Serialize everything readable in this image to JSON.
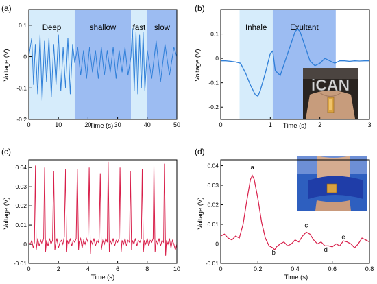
{
  "colors": {
    "blue_trace": "#2f7fd8",
    "red_trace": "#d81f4a",
    "light_band": "#d6ecfb",
    "dark_band": "#9cbcf2",
    "axis": "#000000"
  },
  "icons": {
    "photo_chest": "chest-sensor-photo",
    "photo_wrist": "wrist-sensor-photo"
  },
  "photo_text": {
    "chest_logo": "iCAN"
  },
  "chart_data": [
    {
      "panel": "(a)",
      "type": "line",
      "xlabel": "Time (s)",
      "ylabel": "Voltage (V)",
      "xlim": [
        0,
        50
      ],
      "ylim": [
        -0.2,
        0.15
      ],
      "xticks": [
        "0",
        "10",
        "20",
        "30",
        "40",
        "50"
      ],
      "yticks": [
        "-0.2",
        "-0.1",
        "0",
        "0.1"
      ],
      "regions": [
        {
          "label": "Deep",
          "x0": 0,
          "x1": 15.5,
          "shade": "light"
        },
        {
          "label": "shallow",
          "x0": 15.5,
          "x1": 34.5,
          "shade": "dark"
        },
        {
          "label": "fast",
          "x0": 34.5,
          "x1": 40,
          "shade": "light"
        },
        {
          "label": "slow",
          "x0": 40,
          "x1": 50,
          "shade": "dark"
        }
      ],
      "series": [
        {
          "color": "blue",
          "x": [
            0,
            1,
            1.6,
            2.2,
            3,
            3.8,
            4.5,
            5.3,
            6,
            6.8,
            7.6,
            8.4,
            9.2,
            10,
            10.8,
            11.6,
            12.4,
            13.2,
            14,
            14.8,
            15.5,
            16.5,
            17.5,
            18.5,
            19.5,
            20.5,
            21.5,
            22.5,
            23.5,
            24.5,
            25.5,
            26.5,
            27.5,
            28.5,
            29.5,
            30.5,
            31.5,
            32.5,
            33.5,
            34.5,
            35,
            35.6,
            36.2,
            36.8,
            37.4,
            38,
            38.6,
            39.2,
            40,
            41.5,
            43,
            44.5,
            46,
            47.5,
            49,
            50
          ],
          "y": [
            0.0,
            0.06,
            -0.09,
            0.04,
            -0.12,
            0.07,
            -0.14,
            0.05,
            -0.08,
            0.06,
            -0.13,
            0.04,
            -0.09,
            0.07,
            -0.11,
            0.03,
            -0.1,
            0.06,
            -0.12,
            0.04,
            -0.02,
            0.03,
            -0.06,
            0.02,
            -0.07,
            0.03,
            -0.05,
            0.02,
            -0.07,
            0.03,
            -0.06,
            0.02,
            -0.05,
            0.03,
            -0.07,
            0.02,
            -0.05,
            0.03,
            -0.06,
            0.0,
            0.09,
            -0.11,
            0.08,
            -0.12,
            0.07,
            -0.1,
            0.08,
            -0.11,
            0.02,
            -0.07,
            0.05,
            -0.08,
            0.04,
            -0.06,
            0.03,
            0.0
          ]
        }
      ]
    },
    {
      "panel": "(b)",
      "type": "line",
      "xlabel": "Time (s)",
      "ylabel": "Voltage (V)",
      "xlim": [
        0,
        3
      ],
      "ylim": [
        -0.25,
        0.2
      ],
      "xticks": [
        "0",
        "1",
        "2",
        "3"
      ],
      "yticks": [
        "-0.2",
        "-0.1",
        "0",
        "0.1"
      ],
      "regions": [
        {
          "label": "Inhale",
          "x0": 0.38,
          "x1": 1.05,
          "shade": "light"
        },
        {
          "label": "Exultant",
          "x0": 1.05,
          "x1": 2.32,
          "shade": "dark"
        }
      ],
      "series": [
        {
          "color": "blue",
          "x": [
            0,
            0.1,
            0.2,
            0.3,
            0.4,
            0.5,
            0.6,
            0.7,
            0.75,
            0.8,
            0.9,
            1.0,
            1.05,
            1.1,
            1.2,
            1.3,
            1.4,
            1.5,
            1.55,
            1.6,
            1.7,
            1.8,
            1.9,
            2.0,
            2.1,
            2.2,
            2.3,
            2.4,
            2.5,
            2.6,
            2.7,
            2.8,
            2.9,
            3.0
          ],
          "y": [
            -0.01,
            -0.01,
            -0.012,
            -0.015,
            -0.02,
            -0.06,
            -0.11,
            -0.15,
            -0.155,
            -0.13,
            -0.06,
            0.02,
            0.03,
            -0.05,
            -0.07,
            -0.01,
            0.05,
            0.11,
            0.12,
            0.11,
            0.05,
            -0.01,
            -0.03,
            -0.02,
            0.0,
            -0.01,
            -0.02,
            -0.01,
            -0.01,
            -0.012,
            -0.01,
            -0.011,
            -0.01,
            -0.01
          ]
        }
      ]
    },
    {
      "panel": "(c)",
      "type": "line",
      "xlabel": "Time (s)",
      "ylabel": "Voltage (V)",
      "xlim": [
        0,
        10
      ],
      "ylim": [
        -0.01,
        0.044
      ],
      "xticks": [
        "0",
        "2",
        "4",
        "6",
        "8",
        "10"
      ],
      "yticks": [
        "-0.01",
        "0",
        "0.01",
        "0.02",
        "0.03",
        "0.04"
      ],
      "series": [
        {
          "color": "red",
          "x": [
            0,
            0.1,
            0.2,
            0.3,
            0.38,
            0.45,
            0.5,
            0.6,
            0.7,
            0.8,
            0.9,
            1.0,
            1.07,
            1.13,
            1.2,
            1.3,
            1.4,
            1.5,
            1.6,
            1.68,
            1.76,
            1.84,
            1.9,
            2.0,
            2.1,
            2.2,
            2.3,
            2.4,
            2.48,
            2.56,
            2.6,
            2.7,
            2.8,
            2.9,
            3.0,
            3.1,
            3.2,
            3.28,
            3.36,
            3.4,
            3.5,
            3.6,
            3.7,
            3.8,
            3.9,
            4.0,
            4.08,
            4.16,
            4.2,
            4.3,
            4.4,
            4.5,
            4.6,
            4.7,
            4.75,
            4.83,
            4.9,
            5.0,
            5.1,
            5.2,
            5.3,
            5.36,
            5.44,
            5.5,
            5.6,
            5.7,
            5.8,
            5.9,
            6.0,
            6.1,
            6.16,
            6.24,
            6.3,
            6.4,
            6.5,
            6.6,
            6.7,
            6.8,
            6.86,
            6.94,
            7.0,
            7.1,
            7.2,
            7.3,
            7.4,
            7.5,
            7.6,
            7.66,
            7.74,
            7.8,
            7.9,
            8.0,
            8.1,
            8.2,
            8.3,
            8.4,
            8.45,
            8.53,
            8.6,
            8.7,
            8.8,
            8.9,
            9.0,
            9.1,
            9.16,
            9.24,
            9.3,
            9.4,
            9.5,
            9.6,
            9.7,
            9.8,
            9.9,
            10.0
          ],
          "y": [
            0.001,
            0.0,
            0.002,
            -0.002,
            0.001,
            0.041,
            -0.003,
            0.003,
            -0.001,
            0.002,
            0.0,
            0.003,
            0.04,
            -0.004,
            0.002,
            -0.001,
            0.003,
            0.0,
            0.002,
            0.038,
            -0.003,
            0.001,
            0.003,
            -0.002,
            0.001,
            0.002,
            0.0,
            0.004,
            0.039,
            -0.004,
            0.002,
            0.0,
            0.003,
            -0.001,
            0.002,
            0.001,
            0.003,
            0.039,
            -0.003,
            0.001,
            0.003,
            -0.002,
            0.002,
            0.0,
            0.003,
            0.001,
            0.04,
            -0.005,
            0.002,
            0.0,
            0.003,
            -0.001,
            0.002,
            0.001,
            0.003,
            0.037,
            -0.003,
            0.002,
            0.0,
            0.003,
            0.001,
            0.043,
            -0.004,
            0.002,
            0.0,
            0.003,
            -0.001,
            0.002,
            0.001,
            0.003,
            0.04,
            -0.004,
            0.002,
            0.0,
            0.003,
            -0.001,
            0.002,
            0.001,
            0.038,
            -0.003,
            0.002,
            0.0,
            0.003,
            -0.001,
            0.002,
            0.001,
            0.003,
            0.039,
            -0.004,
            0.002,
            0.0,
            0.003,
            -0.001,
            0.002,
            0.001,
            0.003,
            0.041,
            -0.004,
            0.002,
            0.0,
            0.003,
            -0.001,
            0.002,
            0.001,
            0.042,
            -0.006,
            0.002,
            0.0,
            0.003,
            -0.002,
            0.002,
            0.0,
            -0.003,
            0.0
          ]
        }
      ]
    },
    {
      "panel": "(d)",
      "type": "line",
      "xlabel": "Time (s)",
      "ylabel": "Voltage (V)",
      "xlim": [
        0,
        0.8
      ],
      "ylim": [
        -0.01,
        0.043
      ],
      "xticks": [
        "0",
        "0.2",
        "0.4",
        "0.6",
        "0.8"
      ],
      "yticks": [
        "-0.01",
        "0",
        "0.01",
        "0.02",
        "0.03",
        "0.04"
      ],
      "zero_line": true,
      "annotations": [
        {
          "text": "a",
          "x": 0.17,
          "y": 0.038
        },
        {
          "text": "b",
          "x": 0.285,
          "y": -0.0055
        },
        {
          "text": "c",
          "x": 0.46,
          "y": 0.0085
        },
        {
          "text": "d",
          "x": 0.565,
          "y": -0.004
        },
        {
          "text": "e",
          "x": 0.66,
          "y": 0.0025
        }
      ],
      "series": [
        {
          "color": "red",
          "x": [
            0,
            0.02,
            0.04,
            0.06,
            0.08,
            0.1,
            0.12,
            0.14,
            0.16,
            0.17,
            0.18,
            0.2,
            0.22,
            0.24,
            0.26,
            0.28,
            0.29,
            0.3,
            0.32,
            0.34,
            0.36,
            0.38,
            0.4,
            0.42,
            0.44,
            0.46,
            0.48,
            0.5,
            0.52,
            0.54,
            0.56,
            0.58,
            0.6,
            0.62,
            0.64,
            0.66,
            0.68,
            0.7,
            0.72,
            0.74,
            0.76,
            0.78,
            0.8
          ],
          "y": [
            0.004,
            0.005,
            0.003,
            0.002,
            0.004,
            0.003,
            0.01,
            0.022,
            0.033,
            0.035,
            0.033,
            0.023,
            0.011,
            0.003,
            -0.001,
            -0.002,
            -0.003,
            -0.0015,
            0.0,
            0.001,
            -0.001,
            0.0,
            0.002,
            0.001,
            0.004,
            0.006,
            0.005,
            0.002,
            0.0,
            0.001,
            -0.001,
            -0.001,
            -0.0015,
            0.0,
            -0.001,
            0.0015,
            0.001,
            0.0,
            -0.002,
            0.0,
            0.003,
            0.002,
            0.001
          ]
        }
      ]
    }
  ]
}
